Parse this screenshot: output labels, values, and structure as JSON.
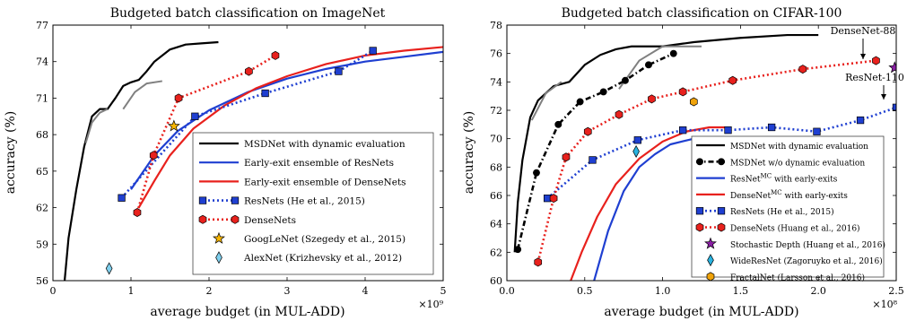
{
  "chart_data": [
    {
      "type": "line",
      "title": "Budgeted batch classification on ImageNet",
      "xlabel": "average budget (in MUL-ADD)",
      "ylabel": "accuracy (%)",
      "x_multiplier": "×10⁹",
      "xlim": [
        0,
        5
      ],
      "ylim": [
        56,
        77
      ],
      "xticks": [
        "0",
        "1",
        "2",
        "3",
        "4",
        "5"
      ],
      "yticks": [
        "56",
        "59",
        "62",
        "65",
        "68",
        "71",
        "74",
        "77"
      ],
      "legend_position": "lower-right",
      "grid": false,
      "series": [
        {
          "name": "MSDNet with dynamic evaluation",
          "style": "solid",
          "color": "#000000",
          "marker": "none",
          "x": [
            0.15,
            0.2,
            0.3,
            0.4,
            0.5,
            0.6,
            0.7,
            0.8,
            0.9,
            1.0,
            1.1,
            1.2,
            1.3,
            1.5,
            1.7,
            1.9,
            2.12
          ],
          "y": [
            56.0,
            59.5,
            63.5,
            67.0,
            69.5,
            70.1,
            70.1,
            71.0,
            72.0,
            72.3,
            72.5,
            73.2,
            74.0,
            75.0,
            75.4,
            75.5,
            75.6
          ]
        },
        {
          "name": "",
          "style": "solid",
          "color": "#808080",
          "marker": "none",
          "x": [
            0.42,
            0.5,
            0.6,
            0.7
          ],
          "y": [
            67.3,
            69.0,
            69.8,
            70.1
          ]
        },
        {
          "name": "",
          "style": "solid",
          "color": "#808080",
          "marker": "none",
          "x": [
            0.9,
            1.05,
            1.2,
            1.4
          ],
          "y": [
            70.1,
            71.5,
            72.2,
            72.4
          ]
        },
        {
          "name": "Early-exit ensemble of ResNets",
          "style": "solid",
          "color": "#1f3fd1",
          "marker": "none",
          "x": [
            1.0,
            1.3,
            1.6,
            2.0,
            2.5,
            3.0,
            3.5,
            4.0,
            4.5,
            5.0
          ],
          "y": [
            63.5,
            66.3,
            68.3,
            70.0,
            71.5,
            72.6,
            73.4,
            74.0,
            74.4,
            74.8
          ]
        },
        {
          "name": "Early-exit ensemble of DenseNets",
          "style": "solid",
          "color": "#e8211d",
          "marker": "none",
          "x": [
            1.1,
            1.3,
            1.5,
            1.8,
            2.2,
            2.6,
            3.0,
            3.5,
            4.0,
            4.5,
            5.0
          ],
          "y": [
            62.0,
            64.2,
            66.3,
            68.5,
            70.4,
            71.8,
            72.8,
            73.8,
            74.5,
            74.9,
            75.2
          ]
        },
        {
          "name": "ResNets (He et al., 2015)",
          "style": "dotted",
          "color": "#1f3fd1",
          "marker": "square",
          "x": [
            0.88,
            1.82,
            2.72,
            3.66,
            4.1
          ],
          "y": [
            62.8,
            69.5,
            71.4,
            73.2,
            74.9
          ]
        },
        {
          "name": "DenseNets",
          "style": "dotted",
          "color": "#e8211d",
          "marker": "hexagon",
          "x": [
            1.08,
            1.29,
            1.61,
            2.51,
            2.85
          ],
          "y": [
            61.6,
            66.3,
            71.0,
            73.2,
            74.5
          ]
        },
        {
          "name": "GoogLeNet (Szegedy et al., 2015)",
          "style": "none",
          "color": "#f7b500",
          "marker": "star",
          "x": [
            1.55
          ],
          "y": [
            68.7
          ]
        },
        {
          "name": "AlexNet (Krizhevsky et al., 2012)",
          "style": "none",
          "color": "#7fd0ee",
          "marker": "diamond",
          "x": [
            0.72
          ],
          "y": [
            57.0
          ]
        }
      ]
    },
    {
      "type": "line",
      "title": "Budgeted batch classification on CIFAR-100",
      "xlabel": "average budget (in MUL-ADD)",
      "ylabel": "accuracy (%)",
      "x_multiplier": "×10⁸",
      "xlim": [
        0,
        2.5
      ],
      "ylim": [
        60,
        78
      ],
      "xticks": [
        "0.0",
        "0.5",
        "1.0",
        "1.5",
        "2.0",
        "2.5"
      ],
      "yticks": [
        "60",
        "62",
        "64",
        "66",
        "68",
        "70",
        "72",
        "74",
        "76",
        "78"
      ],
      "legend_position": "lower-right",
      "grid": false,
      "annotations": [
        {
          "text": "DenseNet-88",
          "x": 2.37,
          "y": 75.5
        },
        {
          "text": "ResNet-110",
          "x": 2.5,
          "y": 72.2
        }
      ],
      "series": [
        {
          "name": "MSDNet with dynamic evaluation",
          "style": "solid",
          "color": "#000000",
          "marker": "none",
          "x": [
            0.05,
            0.07,
            0.1,
            0.15,
            0.2,
            0.3,
            0.4,
            0.5,
            0.6,
            0.7,
            0.8,
            1.0,
            1.2,
            1.5,
            1.8,
            2.0
          ],
          "y": [
            62.0,
            65.5,
            68.5,
            71.5,
            72.7,
            73.7,
            74.0,
            75.2,
            75.9,
            76.3,
            76.5,
            76.5,
            76.8,
            77.1,
            77.3,
            77.3
          ]
        },
        {
          "name": "",
          "style": "solid",
          "color": "#808080",
          "marker": "none",
          "x": [
            0.16,
            0.25,
            0.35
          ],
          "y": [
            71.3,
            73.2,
            74.0
          ]
        },
        {
          "name": "",
          "style": "solid",
          "color": "#808080",
          "marker": "none",
          "x": [
            0.72,
            0.85,
            1.0,
            1.25
          ],
          "y": [
            73.5,
            75.5,
            76.5,
            76.5
          ]
        },
        {
          "name": "MSDNet w/o dynamic evaluation",
          "style": "dashdot",
          "color": "#000000",
          "marker": "circle",
          "x": [
            0.07,
            0.19,
            0.33,
            0.47,
            0.62,
            0.76,
            0.91,
            1.07
          ],
          "y": [
            62.2,
            67.6,
            71.0,
            72.6,
            73.3,
            74.1,
            75.2,
            76.0
          ]
        },
        {
          "name": "ResNet^MC with early-exits",
          "style": "solid",
          "color": "#1f3fd1",
          "marker": "none",
          "x": [
            0.56,
            0.65,
            0.75,
            0.85,
            0.95,
            1.05,
            1.2,
            1.3
          ],
          "y": [
            60.0,
            63.5,
            66.3,
            68.0,
            68.9,
            69.6,
            70.0,
            70.0
          ]
        },
        {
          "name": "DenseNet^MC with early-exits",
          "style": "solid",
          "color": "#e8211d",
          "marker": "none",
          "x": [
            0.41,
            0.48,
            0.58,
            0.7,
            0.85,
            1.0,
            1.15,
            1.3,
            1.4
          ],
          "y": [
            60.0,
            62.0,
            64.5,
            66.8,
            68.6,
            69.8,
            70.5,
            70.8,
            70.8
          ]
        },
        {
          "name": "ResNets (He et al., 2015)",
          "style": "dotted",
          "color": "#1f3fd1",
          "marker": "square",
          "x": [
            0.26,
            0.55,
            0.84,
            1.13,
            1.42,
            1.7,
            1.99,
            2.27,
            2.5
          ],
          "y": [
            65.8,
            68.5,
            69.9,
            70.6,
            70.6,
            70.8,
            70.5,
            71.3,
            72.2
          ]
        },
        {
          "name": "DenseNets (Huang et al., 2016)",
          "style": "dotted",
          "color": "#e8211d",
          "marker": "hexagon",
          "x": [
            0.2,
            0.3,
            0.38,
            0.52,
            0.72,
            0.93,
            1.13,
            1.45,
            1.9,
            2.37
          ],
          "y": [
            61.3,
            65.8,
            68.7,
            70.5,
            71.7,
            72.8,
            73.3,
            74.1,
            74.9,
            75.5
          ]
        },
        {
          "name": "Stochastic Depth (Huang et al., 2016)",
          "style": "none",
          "color": "#8a1fa4",
          "marker": "star",
          "x": [
            2.49
          ],
          "y": [
            75.0
          ]
        },
        {
          "name": "WideResNet (Zagoruyko et al., 2016)",
          "style": "none",
          "color": "#2ab3e0",
          "marker": "diamond",
          "x": [
            0.83
          ],
          "y": [
            69.1
          ]
        },
        {
          "name": "FractalNet (Larsson et al., 2016)",
          "style": "none",
          "color": "#f0a30a",
          "marker": "hexagon",
          "x": [
            1.2
          ],
          "y": [
            72.6
          ]
        }
      ]
    }
  ]
}
